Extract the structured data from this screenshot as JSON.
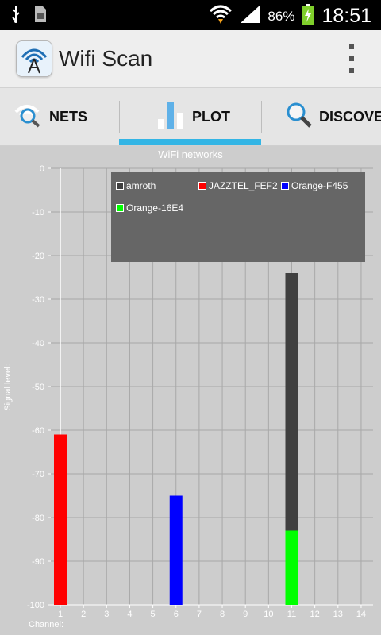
{
  "status_bar": {
    "battery": "86%",
    "time": "18:51"
  },
  "app_bar": {
    "title": "Wifi Scan"
  },
  "tabs": [
    {
      "label": "NETS",
      "icon": "wifi-search-icon"
    },
    {
      "label": "PLOT",
      "icon": "bar-chart-icon"
    },
    {
      "label": "DISCOVER",
      "icon": "magnifier-icon"
    }
  ],
  "colors": {
    "accent": "#33b5e5",
    "grid": "#a8a8a8",
    "background": "#cdcdcd"
  },
  "chart_data": {
    "type": "bar",
    "title": "WiFi networks",
    "xlabel": "Channel:",
    "ylabel": "Signal level:",
    "x_ticks": [
      1,
      2,
      3,
      4,
      5,
      6,
      7,
      8,
      9,
      10,
      11,
      12,
      13,
      14
    ],
    "y_ticks": [
      0,
      -10,
      -20,
      -30,
      -40,
      -50,
      -60,
      -70,
      -80,
      -90,
      -100
    ],
    "xlim": [
      0.5,
      14.5
    ],
    "ylim": [
      -100,
      0
    ],
    "legend": "top-right",
    "series": [
      {
        "name": "amroth",
        "color": "#404040",
        "points": [
          {
            "channel": 11,
            "level": -24
          }
        ]
      },
      {
        "name": "JAZZTEL_FEF2",
        "color": "#ff0000",
        "points": [
          {
            "channel": 1,
            "level": -61
          }
        ]
      },
      {
        "name": "Orange-F455",
        "color": "#0000ff",
        "points": [
          {
            "channel": 6,
            "level": -75
          }
        ]
      },
      {
        "name": "Orange-16E4",
        "color": "#00ff00",
        "points": [
          {
            "channel": 11,
            "level": -83
          }
        ]
      }
    ]
  }
}
